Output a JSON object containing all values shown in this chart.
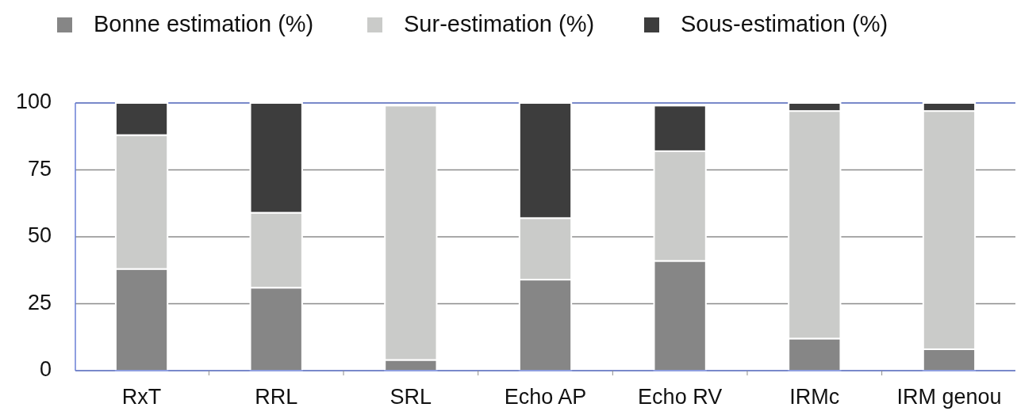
{
  "chart_data": {
    "type": "bar",
    "stacked": true,
    "categories": [
      "RxT",
      "RRL",
      "SRL",
      "Echo AP",
      "Echo RV",
      "IRMc",
      "IRM genou"
    ],
    "series": [
      {
        "name": "Bonne estimation (%)",
        "color": "#868686",
        "values": [
          38,
          31,
          4,
          34,
          41,
          12,
          8
        ]
      },
      {
        "name": "Sur-estimation (%)",
        "color": "#cacbc9",
        "values": [
          50,
          28,
          95,
          23,
          41,
          85,
          89
        ]
      },
      {
        "name": "Sous-estimation (%)",
        "color": "#3d3d3d",
        "values": [
          12,
          41,
          null,
          43,
          17,
          3,
          3
        ]
      }
    ],
    "ylim": [
      0,
      100
    ],
    "yticks": [
      0,
      25,
      50,
      75,
      100
    ],
    "grid": "y",
    "legend": "top"
  }
}
